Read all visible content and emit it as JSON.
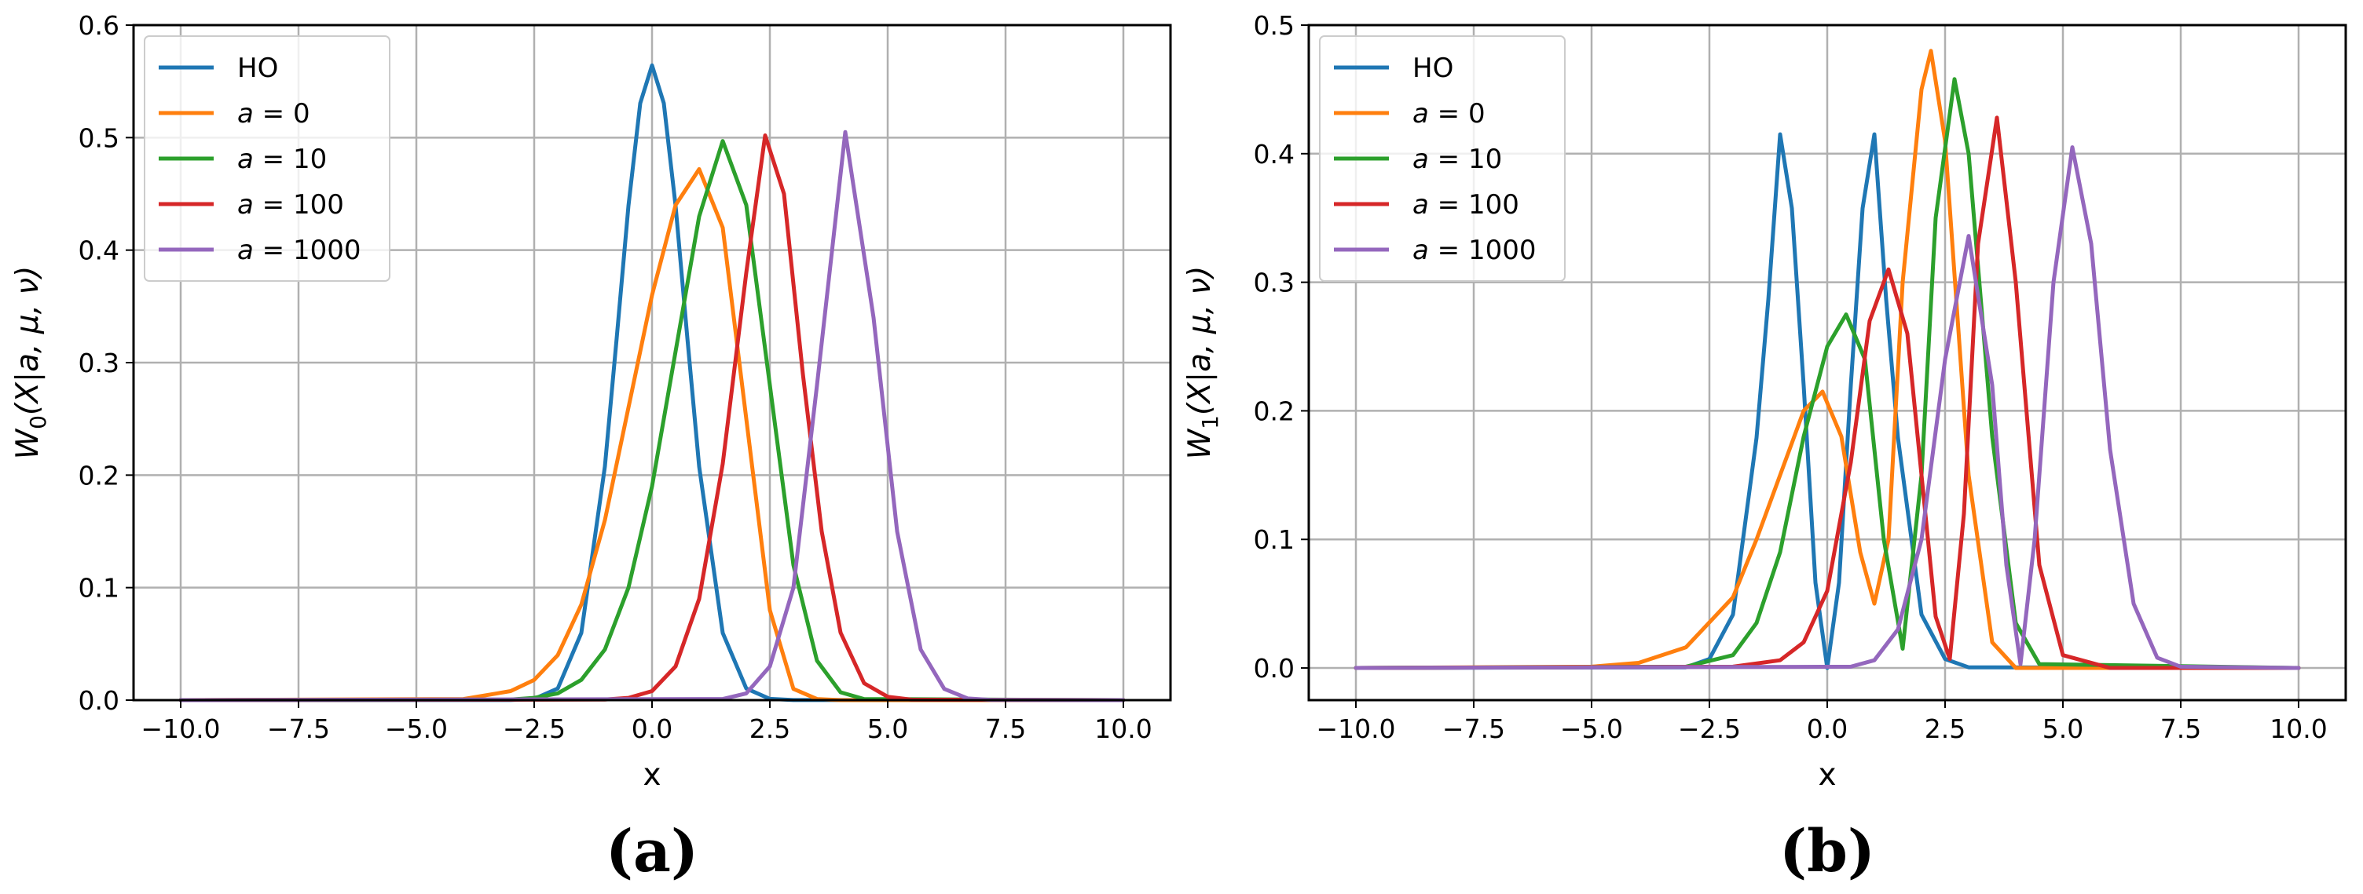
{
  "chart_data": [
    {
      "type": "line",
      "id": "a",
      "panel_label": "(a)",
      "xlabel": "x",
      "ylabel": "W0(X|a,μ,ν)",
      "ylabel_main": "W",
      "ylabel_sub": "0",
      "ylabel_args": "(X|a, μ, ν)",
      "xlim": [
        -11,
        11
      ],
      "ylim": [
        0,
        0.6
      ],
      "grid": true,
      "legend_position": "upper-left",
      "xticks": [
        -10,
        -7.5,
        -5,
        -2.5,
        0,
        2.5,
        5,
        7.5,
        10
      ],
      "xtick_labels": [
        "−10.0",
        "−7.5",
        "−5.0",
        "−2.5",
        "0.0",
        "2.5",
        "5.0",
        "7.5",
        "10.0"
      ],
      "yticks": [
        0,
        0.1,
        0.2,
        0.3,
        0.4,
        0.5,
        0.6
      ],
      "ytick_labels": [
        "0.0",
        "0.1",
        "0.2",
        "0.3",
        "0.4",
        "0.5",
        "0.6"
      ],
      "series": [
        {
          "name": "HO",
          "legend_prefix": "HO",
          "legend_value": "",
          "color": "#1f77b4",
          "x": [
            -10,
            -3,
            -2.5,
            -2,
            -1.5,
            -1,
            -0.75,
            -0.5,
            -0.25,
            0,
            0.25,
            0.5,
            0.75,
            1,
            1.5,
            2,
            2.5,
            3,
            10
          ],
          "y": [
            0,
            0.0001,
            0.0011,
            0.0103,
            0.0597,
            0.2076,
            0.3216,
            0.4394,
            0.5306,
            0.5642,
            0.5306,
            0.4394,
            0.3216,
            0.2076,
            0.0597,
            0.0103,
            0.0011,
            0.0001,
            0
          ]
        },
        {
          "name": "a = 0",
          "legend_prefix": "a",
          "legend_value": "0",
          "color": "#ff7f0e",
          "x": [
            -10,
            -4,
            -3,
            -2.5,
            -2,
            -1.5,
            -1,
            -0.5,
            0,
            0.5,
            1,
            1.5,
            2,
            2.5,
            3,
            3.5,
            4,
            10
          ],
          "y": [
            0,
            0.001,
            0.008,
            0.018,
            0.04,
            0.085,
            0.16,
            0.26,
            0.36,
            0.44,
            0.472,
            0.42,
            0.25,
            0.08,
            0.01,
            0.001,
            0,
            0
          ]
        },
        {
          "name": "a = 10",
          "legend_prefix": "a",
          "legend_value": "10",
          "color": "#2ca02c",
          "x": [
            -10,
            -3,
            -2.5,
            -2,
            -1.5,
            -1,
            -0.5,
            0,
            0.5,
            1,
            1.5,
            2,
            2.5,
            3,
            3.5,
            4,
            4.5,
            10
          ],
          "y": [
            0,
            0.0005,
            0.002,
            0.006,
            0.018,
            0.045,
            0.1,
            0.19,
            0.31,
            0.43,
            0.497,
            0.44,
            0.28,
            0.12,
            0.035,
            0.007,
            0.001,
            0
          ]
        },
        {
          "name": "a = 100",
          "legend_prefix": "a",
          "legend_value": "100",
          "color": "#d62728",
          "x": [
            -10,
            -1,
            -0.5,
            0,
            0.5,
            1,
            1.5,
            2,
            2.4,
            2.8,
            3.2,
            3.6,
            4,
            4.5,
            5,
            5.5,
            10
          ],
          "y": [
            0,
            0.0005,
            0.002,
            0.008,
            0.03,
            0.09,
            0.21,
            0.38,
            0.502,
            0.45,
            0.29,
            0.15,
            0.06,
            0.015,
            0.003,
            0.0004,
            0
          ]
        },
        {
          "name": "a = 1000",
          "legend_prefix": "a",
          "legend_value": "1000",
          "color": "#9467bd",
          "x": [
            -10,
            1.5,
            2,
            2.5,
            3,
            3.5,
            4.1,
            4.7,
            5.2,
            5.7,
            6.2,
            6.7,
            7.2,
            10
          ],
          "y": [
            0,
            0.001,
            0.006,
            0.03,
            0.1,
            0.28,
            0.505,
            0.34,
            0.15,
            0.045,
            0.01,
            0.0015,
            0.0002,
            0
          ]
        }
      ]
    },
    {
      "type": "line",
      "id": "b",
      "panel_label": "(b)",
      "xlabel": "x",
      "ylabel": "W1(X|a,μ,ν)",
      "ylabel_main": "W",
      "ylabel_sub": "1",
      "ylabel_args": "(X|a, μ, ν)",
      "xlim": [
        -11,
        11
      ],
      "ylim": [
        -0.025,
        0.5
      ],
      "grid": true,
      "legend_position": "upper-left",
      "xticks": [
        -10,
        -7.5,
        -5,
        -2.5,
        0,
        2.5,
        5,
        7.5,
        10
      ],
      "xtick_labels": [
        "−10.0",
        "−7.5",
        "−5.0",
        "−2.5",
        "0.0",
        "2.5",
        "5.0",
        "7.5",
        "10.0"
      ],
      "yticks": [
        0,
        0.1,
        0.2,
        0.3,
        0.4,
        0.5
      ],
      "ytick_labels": [
        "0.0",
        "0.1",
        "0.2",
        "0.3",
        "0.4",
        "0.5"
      ],
      "series": [
        {
          "name": "HO",
          "legend_prefix": "HO",
          "legend_value": "",
          "color": "#1f77b4",
          "x": [
            -10,
            -3,
            -2.5,
            -2,
            -1.5,
            -1.25,
            -1,
            -0.75,
            -0.5,
            -0.25,
            0,
            0.25,
            0.5,
            0.75,
            1,
            1.25,
            1.5,
            2,
            2.5,
            3,
            10
          ],
          "y": [
            0,
            0.0005,
            0.007,
            0.0415,
            0.1791,
            0.2866,
            0.4151,
            0.3575,
            0.2197,
            0.0663,
            0,
            0.0663,
            0.2197,
            0.3575,
            0.4151,
            0.2866,
            0.1791,
            0.0415,
            0.007,
            0.0005,
            0
          ]
        },
        {
          "name": "a = 0",
          "legend_prefix": "a",
          "legend_value": "0",
          "color": "#ff7f0e",
          "x": [
            -10,
            -5,
            -4,
            -3,
            -2,
            -1.5,
            -1,
            -0.5,
            -0.1,
            0.3,
            0.7,
            1,
            1.3,
            1.6,
            2,
            2.2,
            2.5,
            3,
            3.5,
            4,
            10
          ],
          "y": [
            0,
            0.001,
            0.004,
            0.016,
            0.055,
            0.1,
            0.15,
            0.2,
            0.215,
            0.18,
            0.09,
            0.05,
            0.1,
            0.3,
            0.45,
            0.48,
            0.41,
            0.15,
            0.02,
            0,
            0
          ]
        },
        {
          "name": "a = 10",
          "legend_prefix": "a",
          "legend_value": "10",
          "color": "#2ca02c",
          "x": [
            -10,
            -3,
            -2,
            -1.5,
            -1,
            -0.5,
            0,
            0.4,
            0.8,
            1.2,
            1.6,
            2,
            2.3,
            2.7,
            3,
            3.5,
            4,
            4.5,
            10
          ],
          "y": [
            0,
            0.001,
            0.01,
            0.035,
            0.09,
            0.18,
            0.25,
            0.275,
            0.24,
            0.1,
            0.015,
            0.15,
            0.35,
            0.458,
            0.4,
            0.18,
            0.035,
            0.003,
            0
          ]
        },
        {
          "name": "a = 100",
          "legend_prefix": "a",
          "legend_value": "100",
          "color": "#d62728",
          "x": [
            -10,
            -2,
            -1,
            -0.5,
            0,
            0.5,
            0.9,
            1.3,
            1.7,
            2,
            2.3,
            2.6,
            2.9,
            3.2,
            3.6,
            4,
            4.5,
            5,
            6,
            10
          ],
          "y": [
            0,
            0.001,
            0.006,
            0.02,
            0.06,
            0.16,
            0.27,
            0.31,
            0.26,
            0.15,
            0.04,
            0.007,
            0.12,
            0.33,
            0.428,
            0.3,
            0.08,
            0.01,
            0,
            0
          ]
        },
        {
          "name": "a = 1000",
          "legend_prefix": "a",
          "legend_value": "1000",
          "color": "#9467bd",
          "x": [
            -10,
            0.5,
            1,
            1.5,
            2,
            2.5,
            3,
            3.5,
            3.8,
            4.1,
            4.4,
            4.8,
            5.2,
            5.6,
            6,
            6.5,
            7,
            7.5,
            10
          ],
          "y": [
            0,
            0.001,
            0.006,
            0.03,
            0.1,
            0.24,
            0.336,
            0.22,
            0.08,
            0.003,
            0.1,
            0.3,
            0.405,
            0.33,
            0.17,
            0.05,
            0.008,
            0.001,
            0
          ]
        }
      ]
    }
  ]
}
